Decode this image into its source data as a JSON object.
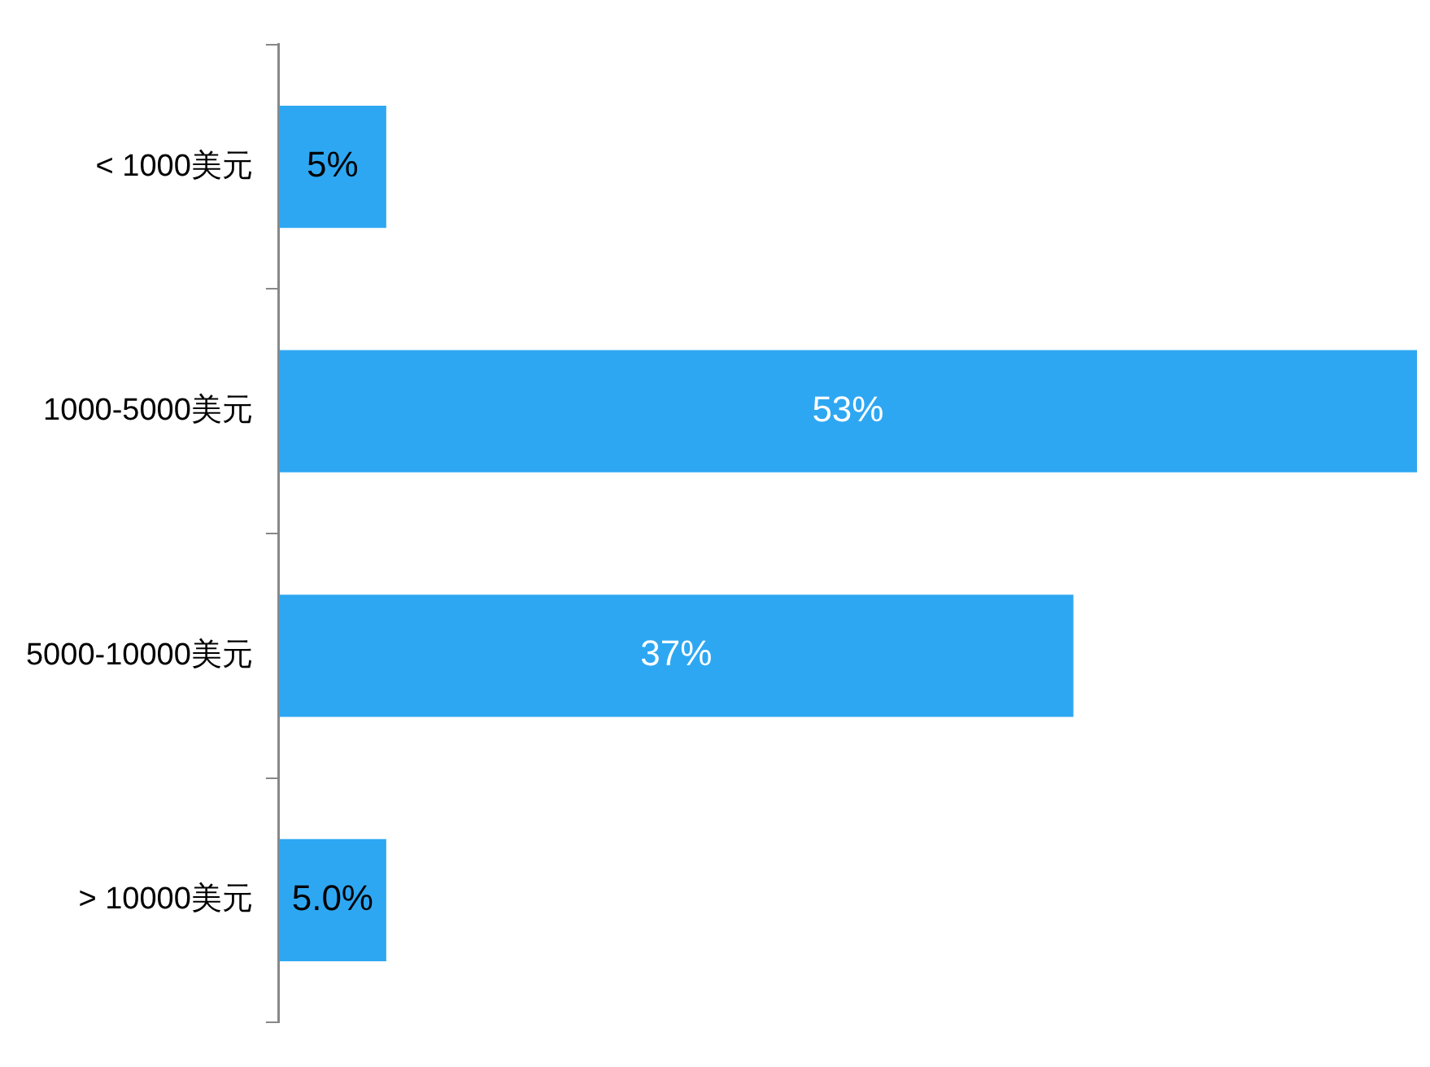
{
  "chart_data": {
    "type": "bar",
    "orientation": "horizontal",
    "categories": [
      "< 1000美元",
      "1000-5000美元",
      "5000-10000美元",
      "> 10000美元"
    ],
    "values": [
      5,
      53,
      37,
      5.0
    ],
    "value_labels": [
      "5%",
      "53%",
      "37%",
      "5.0%"
    ],
    "color": "#2ea7f2",
    "grid": false,
    "legend": false
  }
}
